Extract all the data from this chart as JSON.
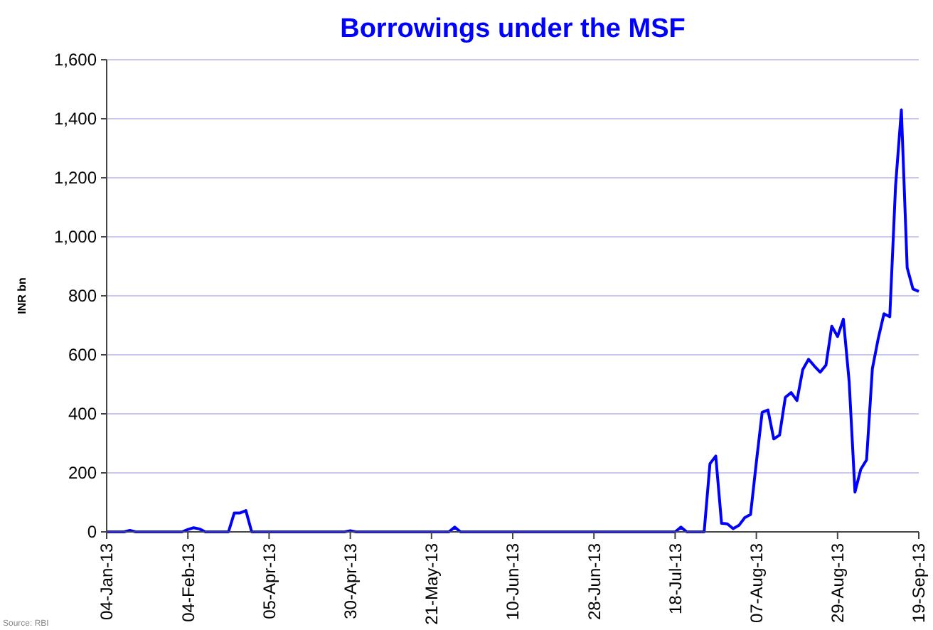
{
  "chart_data": {
    "type": "line",
    "title": "Borrowings under the MSF",
    "ylabel": "INR bn",
    "annotations": [
      "Source: RBI"
    ],
    "categories": [
      "04-Jan-13",
      null,
      null,
      null,
      null,
      null,
      null,
      null,
      null,
      null,
      null,
      null,
      null,
      null,
      "04-Feb-13",
      null,
      null,
      null,
      null,
      null,
      null,
      null,
      null,
      null,
      null,
      null,
      null,
      null,
      "05-Apr-13",
      null,
      null,
      null,
      null,
      null,
      null,
      null,
      null,
      null,
      null,
      null,
      null,
      null,
      "30-Apr-13",
      null,
      null,
      null,
      null,
      null,
      null,
      null,
      null,
      null,
      null,
      null,
      null,
      null,
      "21-May-13",
      null,
      null,
      null,
      null,
      null,
      null,
      null,
      null,
      null,
      null,
      null,
      null,
      null,
      "10-Jun-13",
      null,
      null,
      null,
      null,
      null,
      null,
      null,
      null,
      null,
      null,
      null,
      null,
      null,
      "28-Jun-13",
      null,
      null,
      null,
      null,
      null,
      null,
      null,
      null,
      null,
      null,
      null,
      null,
      null,
      "18-Jul-13",
      null,
      null,
      null,
      null,
      null,
      null,
      null,
      null,
      null,
      null,
      null,
      null,
      null,
      "07-Aug-13",
      null,
      null,
      null,
      null,
      null,
      null,
      null,
      null,
      null,
      null,
      null,
      null,
      null,
      "29-Aug-13",
      null,
      null,
      null,
      null,
      null,
      null,
      null,
      null,
      null,
      null,
      null,
      null,
      null,
      "19-Sep-13"
    ],
    "series": [
      {
        "color": "#0000ff",
        "values": [
          0,
          0,
          0,
          0,
          5,
          0,
          0,
          0,
          0,
          0,
          0,
          0,
          0,
          0,
          8,
          14,
          10,
          0,
          0,
          0,
          0,
          0,
          64,
          64,
          72,
          0,
          0,
          0,
          0,
          0,
          0,
          0,
          0,
          0,
          0,
          0,
          0,
          0,
          0,
          0,
          0,
          0,
          4,
          0,
          0,
          0,
          0,
          0,
          0,
          0,
          0,
          0,
          0,
          0,
          0,
          0,
          0,
          0,
          0,
          0,
          16,
          0,
          0,
          0,
          0,
          0,
          0,
          0,
          0,
          0,
          0,
          0,
          0,
          0,
          0,
          0,
          0,
          0,
          0,
          0,
          0,
          0,
          0,
          0,
          0,
          0,
          0,
          0,
          0,
          0,
          0,
          0,
          0,
          0,
          0,
          0,
          0,
          0,
          0,
          16,
          0,
          0,
          0,
          0,
          231,
          257,
          29,
          27,
          11,
          22,
          48,
          59,
          236,
          405,
          413,
          315,
          328,
          456,
          472,
          445,
          550,
          585,
          562,
          541,
          565,
          697,
          662,
          721,
          509,
          135,
          212,
          244,
          553,
          654,
          739,
          729,
          1173,
          1430,
          895,
          823,
          815
        ]
      }
    ],
    "ylim": [
      0,
      1600
    ],
    "yticks": [
      0,
      {
        "value": 200,
        "label": "200"
      },
      {
        "value": 400,
        "label": "400"
      },
      {
        "value": 600,
        "label": "600"
      },
      {
        "value": 800,
        "label": "800"
      },
      {
        "value": 1000,
        "label": "1,000"
      },
      {
        "value": 1200,
        "label": "1,200"
      },
      {
        "value": 1400,
        "label": "1,400"
      },
      {
        "value": 1600,
        "label": "1,600"
      }
    ],
    "grid": "y",
    "marker": "none",
    "line_style": "solid"
  }
}
